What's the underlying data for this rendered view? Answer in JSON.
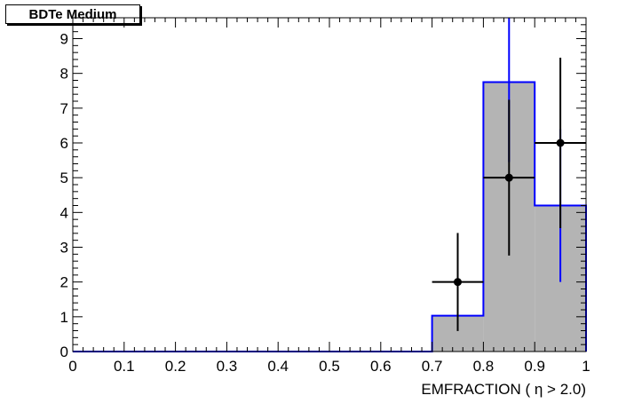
{
  "chart_data": {
    "type": "histogram",
    "title": "BDTe Medium",
    "xlabel": "EMFRACTION ( η > 2.0)",
    "ylabel": "",
    "xlim": [
      0,
      1
    ],
    "ylim": [
      0,
      9.6
    ],
    "xticks": [
      "0",
      "0.1",
      "0.2",
      "0.3",
      "0.4",
      "0.5",
      "0.6",
      "0.7",
      "0.8",
      "0.9",
      "1"
    ],
    "yticks": [
      "0",
      "1",
      "2",
      "3",
      "4",
      "5",
      "6",
      "7",
      "8",
      "9"
    ],
    "bin_edges": [
      0,
      0.7,
      0.8,
      0.9,
      1.0
    ],
    "histogram": {
      "values": [
        0,
        1.03,
        7.75,
        4.2
      ],
      "errors": [
        0,
        0,
        2.3,
        2.2
      ],
      "fill_color": "#b4b4b4",
      "line_color": "#0000ff"
    },
    "points": {
      "x": [
        0.75,
        0.85,
        0.95
      ],
      "y": [
        2,
        5,
        6
      ],
      "yerr": [
        1.41,
        2.24,
        2.45
      ],
      "xerr": [
        0.05,
        0.05,
        0.05
      ],
      "color": "#000000"
    },
    "grid": false,
    "legend": "none"
  }
}
